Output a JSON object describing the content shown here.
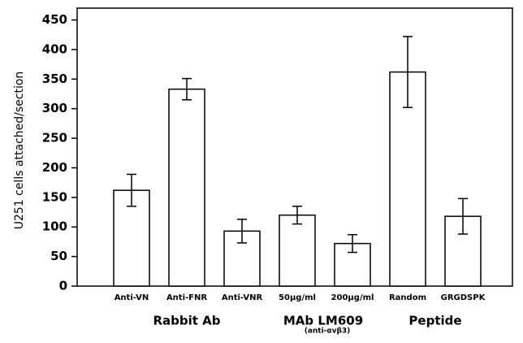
{
  "chart_data": {
    "type": "bar",
    "y_label": "U251 cells attached/section",
    "categories": [
      "Anti-VN",
      "Anti-FNR",
      "Anti-VNR",
      "50µg/ml",
      "200µg/ml",
      "Random",
      "GRGDSPK"
    ],
    "values": [
      162,
      333,
      93,
      120,
      72,
      362,
      118
    ],
    "errors": [
      27,
      18,
      20,
      15,
      15,
      60,
      30
    ],
    "color": "#ffffff",
    "group_labels": [
      "Rabbit Ab",
      "MAb LM609",
      "Peptide"
    ],
    "group_sublabel": "(anti-αvβ3)",
    "ylim": [
      0,
      470
    ],
    "yticks": [
      0,
      50,
      100,
      150,
      200,
      250,
      300,
      350,
      400,
      450
    ],
    "grid": false
  }
}
